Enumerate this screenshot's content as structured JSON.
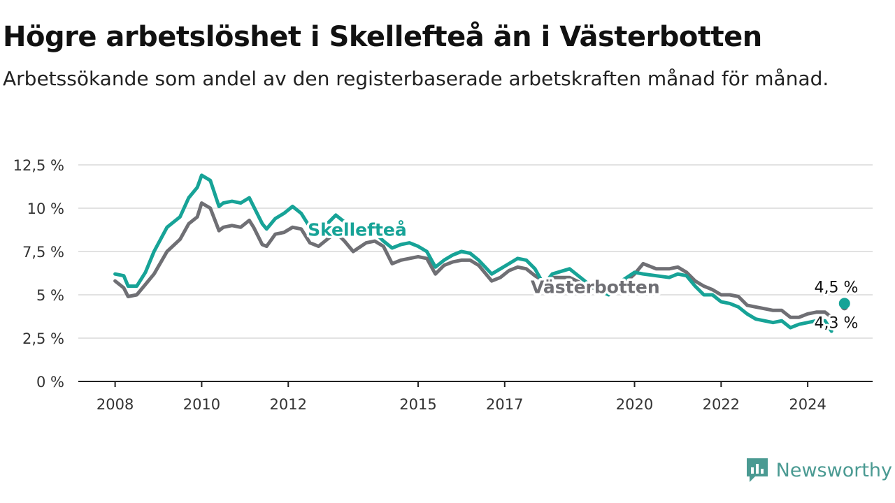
{
  "title": "Högre arbetslöshet i Skellefteå än i Västerbotten",
  "subtitle": "Arbetssökande som andel av den registerbaserade arbetskraften månad för månad.",
  "brand": {
    "name": "Newsworthy",
    "icon": "newsworthy-logo-icon",
    "color": "#4a9a92"
  },
  "chart_data": {
    "type": "line",
    "title": "Högre arbetslöshet i Skellefteå än i Västerbotten",
    "subtitle": "Arbetssökande som andel av den registerbaserade arbetskraften månad för månad.",
    "xlabel": "",
    "ylabel": "",
    "xlim": [
      2008,
      2025.2
    ],
    "ylim": [
      0,
      12.5
    ],
    "x_ticks": [
      2008,
      2010,
      2012,
      2015,
      2017,
      2020,
      2022,
      2024
    ],
    "x_tick_labels": [
      "2008",
      "2010",
      "2012",
      "2015",
      "2017",
      "2020",
      "2022",
      "2024"
    ],
    "y_ticks": [
      0,
      2.5,
      5,
      7.5,
      10,
      12.5
    ],
    "y_tick_labels": [
      "0 %",
      "2,5 %",
      "5 %",
      "7,5 %",
      "10 %",
      "12,5 %"
    ],
    "grid": true,
    "legend": "inline",
    "series": [
      {
        "name": "Skellefteå",
        "color": "#17a397",
        "x": [
          2008.0,
          2008.2,
          2008.3,
          2008.5,
          2008.7,
          2008.9,
          2009.2,
          2009.5,
          2009.7,
          2009.9,
          2010.0,
          2010.2,
          2010.4,
          2010.5,
          2010.7,
          2010.9,
          2011.1,
          2011.2,
          2011.4,
          2011.5,
          2011.7,
          2011.9,
          2012.1,
          2012.3,
          2012.5,
          2012.7,
          2012.9,
          2013.1,
          2013.3,
          2013.5,
          2013.8,
          2014.0,
          2014.2,
          2014.4,
          2014.6,
          2014.8,
          2015.0,
          2015.2,
          2015.4,
          2015.6,
          2015.8,
          2016.0,
          2016.2,
          2016.4,
          2016.7,
          2016.9,
          2017.1,
          2017.3,
          2017.5,
          2017.7,
          2017.9,
          2018.1,
          2018.5,
          2019.0,
          2019.4,
          2019.7,
          2020.0,
          2020.2,
          2020.5,
          2020.8,
          2021.0,
          2021.2,
          2021.4,
          2021.6,
          2021.8,
          2022.0,
          2022.2,
          2022.4,
          2022.6,
          2022.8,
          2023.0,
          2023.2,
          2023.4,
          2023.6,
          2023.8,
          2024.0,
          2024.2,
          2024.4,
          2024.55,
          2024.85
        ],
        "y": [
          6.2,
          6.1,
          5.5,
          5.5,
          6.3,
          7.5,
          8.9,
          9.5,
          10.6,
          11.2,
          11.9,
          11.6,
          10.1,
          10.3,
          10.4,
          10.3,
          10.6,
          10.1,
          9.1,
          8.8,
          9.4,
          9.7,
          10.1,
          9.7,
          8.9,
          8.6,
          9.1,
          9.6,
          9.2,
          8.4,
          8.6,
          8.6,
          8.1,
          7.7,
          7.9,
          8.0,
          7.8,
          7.5,
          6.6,
          7.0,
          7.3,
          7.5,
          7.4,
          7.0,
          6.2,
          6.5,
          6.8,
          7.1,
          7.0,
          6.5,
          5.6,
          6.2,
          6.5,
          5.5,
          5.0,
          5.8,
          6.3,
          6.2,
          6.1,
          6.0,
          6.2,
          6.1,
          5.5,
          5.0,
          5.0,
          4.6,
          4.5,
          4.3,
          3.9,
          3.6,
          3.5,
          3.4,
          3.5,
          3.1,
          3.3,
          3.4,
          3.5,
          3.5,
          2.9,
          4.5
        ],
        "end_value": 4.5,
        "end_label": "4,5 %"
      },
      {
        "name": "Västerbotten",
        "color": "#6f6f74",
        "x": [
          2008.0,
          2008.2,
          2008.3,
          2008.5,
          2008.7,
          2008.9,
          2009.2,
          2009.5,
          2009.7,
          2009.9,
          2010.0,
          2010.2,
          2010.4,
          2010.5,
          2010.7,
          2010.9,
          2011.1,
          2011.2,
          2011.4,
          2011.5,
          2011.7,
          2011.9,
          2012.1,
          2012.3,
          2012.5,
          2012.7,
          2012.9,
          2013.1,
          2013.3,
          2013.5,
          2013.8,
          2014.0,
          2014.2,
          2014.4,
          2014.6,
          2014.8,
          2015.0,
          2015.2,
          2015.4,
          2015.6,
          2015.8,
          2016.0,
          2016.2,
          2016.4,
          2016.7,
          2016.9,
          2017.1,
          2017.3,
          2017.5,
          2017.7,
          2017.9,
          2018.1,
          2018.5,
          2019.0,
          2019.4,
          2019.7,
          2020.0,
          2020.2,
          2020.5,
          2020.8,
          2021.0,
          2021.2,
          2021.4,
          2021.6,
          2021.8,
          2022.0,
          2022.2,
          2022.4,
          2022.6,
          2022.8,
          2023.0,
          2023.2,
          2023.4,
          2023.6,
          2023.8,
          2024.0,
          2024.2,
          2024.4,
          2024.55,
          2024.85
        ],
        "y": [
          5.8,
          5.4,
          4.9,
          5.0,
          5.6,
          6.2,
          7.5,
          8.2,
          9.1,
          9.5,
          10.3,
          10.0,
          8.7,
          8.9,
          9.0,
          8.9,
          9.3,
          8.9,
          7.9,
          7.8,
          8.5,
          8.6,
          8.9,
          8.8,
          8.0,
          7.8,
          8.2,
          8.6,
          8.1,
          7.5,
          8.0,
          8.1,
          7.8,
          6.8,
          7.0,
          7.1,
          7.2,
          7.1,
          6.2,
          6.7,
          6.9,
          7.0,
          7.0,
          6.7,
          5.8,
          6.0,
          6.4,
          6.6,
          6.5,
          6.1,
          5.8,
          6.0,
          6.0,
          5.4,
          5.2,
          5.5,
          6.2,
          6.8,
          6.5,
          6.5,
          6.6,
          6.3,
          5.8,
          5.5,
          5.3,
          5.0,
          5.0,
          4.9,
          4.4,
          4.3,
          4.2,
          4.1,
          4.1,
          3.7,
          3.7,
          3.9,
          4.0,
          4.0,
          3.7,
          4.3
        ],
        "end_value": 4.3,
        "end_label": "4,3 %"
      }
    ]
  }
}
